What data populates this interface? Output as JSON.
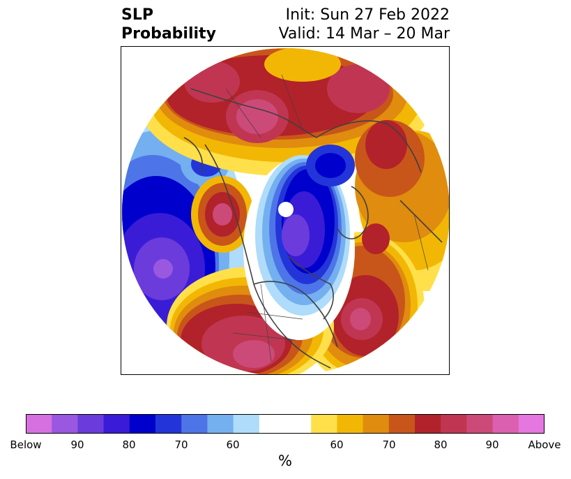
{
  "header": {
    "title_line1": "SLP",
    "title_line2": "Probability",
    "init": "Init: Sun 27 Feb 2022",
    "valid": "Valid: 14 Mar – 20 Mar"
  },
  "map": {
    "projection": "north-polar-stereographic",
    "region": "Northern Hemisphere",
    "colors": {
      "below_100": "#d670e0",
      "below_90": "#9a57e0",
      "below_85": "#6b3bdc",
      "below_80": "#3a1cd6",
      "below_75": "#0000cc",
      "below_70": "#2335d8",
      "below_65": "#4d75e8",
      "below_60": "#74aff0",
      "below_55": "#aedcfa",
      "neutral": "#ffffff",
      "above_55": "#ffe04a",
      "above_60": "#f2b705",
      "above_65": "#e08c0e",
      "above_70": "#c8561a",
      "above_75": "#b2222a",
      "above_80": "#c03652",
      "above_85": "#cc4a78",
      "above_90": "#dc60b0",
      "above_100": "#e676e0"
    }
  },
  "colorbar": {
    "colors": [
      "#d670e0",
      "#9a57e0",
      "#6b3bdc",
      "#3a1cd6",
      "#0000cc",
      "#2335d8",
      "#4d75e8",
      "#74aff0",
      "#aedcfa",
      "#ffffff",
      "#ffffff",
      "#ffe04a",
      "#f2b705",
      "#e08c0e",
      "#c8561a",
      "#b2222a",
      "#c03652",
      "#cc4a78",
      "#dc60b0",
      "#e676e0"
    ],
    "tick_labels": [
      "Below",
      "90",
      "80",
      "70",
      "60",
      "60",
      "70",
      "80",
      "90",
      "Above"
    ],
    "unit": "%"
  }
}
